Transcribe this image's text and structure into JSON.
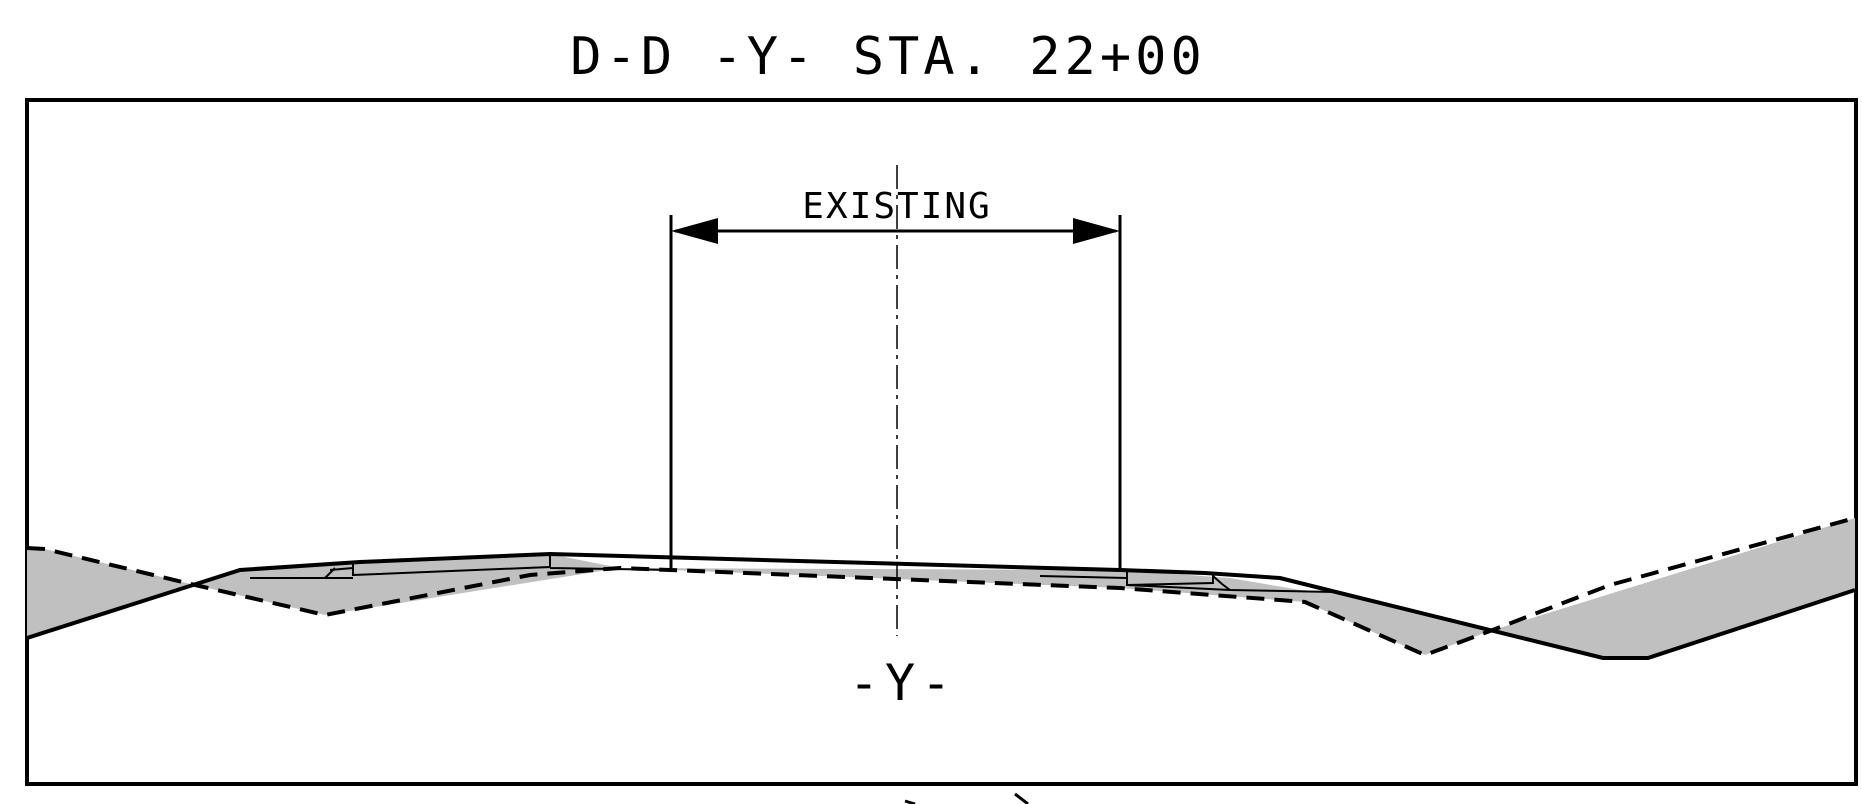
{
  "section": {
    "title": "D-D -Y- STA. 22+00",
    "dimension_label": "EXISTING",
    "centerline_label": "-Y-"
  },
  "colors": {
    "line": "#000000",
    "fill": "#c0c0c0",
    "background": "#ffffff"
  }
}
